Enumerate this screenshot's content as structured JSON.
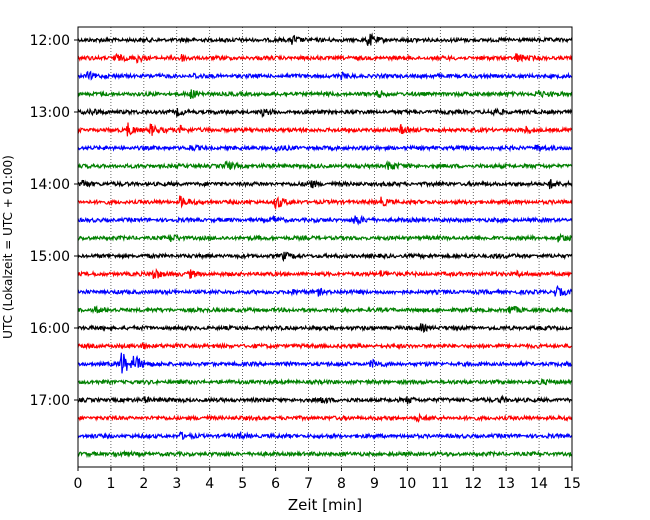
{
  "chart_data": {
    "type": "line",
    "title": "",
    "xlabel": "Zeit  [min]",
    "ylabel": "UTC (Lokalzeit = UTC + 01:00)",
    "x_ticks": [
      "0",
      "1",
      "2",
      "3",
      "4",
      "5",
      "6",
      "7",
      "8",
      "9",
      "10",
      "11",
      "12",
      "13",
      "14",
      "15"
    ],
    "xlim": [
      0,
      15
    ],
    "y_time_labels": [
      "12:00",
      "13:00",
      "14:00",
      "15:00",
      "16:00",
      "17:00"
    ],
    "trace_colors": [
      "#000000",
      "#ff0000",
      "#0000ff",
      "#008000"
    ],
    "grid": {
      "x": true,
      "style": "dotted",
      "y": false
    },
    "traces": [
      {
        "start": "12:00",
        "color": "#000000",
        "events": [
          [
            6.5,
            0.7
          ],
          [
            8.8,
            1.0
          ]
        ]
      },
      {
        "start": "12:15",
        "color": "#ff0000",
        "events": [
          [
            1.1,
            0.6
          ],
          [
            1.8,
            0.5
          ],
          [
            3.1,
            0.5
          ],
          [
            13.3,
            0.7
          ]
        ]
      },
      {
        "start": "12:30",
        "color": "#0000ff",
        "events": [
          [
            0.3,
            0.6
          ],
          [
            3.5,
            0.3
          ],
          [
            8.0,
            0.3
          ]
        ]
      },
      {
        "start": "12:45",
        "color": "#008000",
        "events": [
          [
            3.4,
            0.6
          ],
          [
            9.1,
            0.5
          ],
          [
            13.9,
            0.6
          ]
        ]
      },
      {
        "start": "13:00",
        "color": "#000000",
        "events": [
          [
            0.4,
            0.5
          ],
          [
            3.0,
            0.4
          ],
          [
            5.6,
            0.4
          ],
          [
            12.6,
            0.5
          ]
        ]
      },
      {
        "start": "13:15",
        "color": "#ff0000",
        "events": [
          [
            1.5,
            0.9
          ],
          [
            2.2,
            0.8
          ],
          [
            3.1,
            0.5
          ],
          [
            9.8,
            0.6
          ],
          [
            13.6,
            0.4
          ]
        ]
      },
      {
        "start": "13:30",
        "color": "#0000ff",
        "events": [
          [
            3.4,
            0.3
          ],
          [
            6.0,
            0.4
          ],
          [
            13.9,
            0.4
          ]
        ]
      },
      {
        "start": "13:45",
        "color": "#008000",
        "events": [
          [
            4.5,
            0.6
          ],
          [
            9.4,
            0.8
          ]
        ]
      },
      {
        "start": "14:00",
        "color": "#000000",
        "events": [
          [
            0.1,
            0.6
          ],
          [
            7.0,
            0.7
          ],
          [
            14.3,
            0.7
          ]
        ]
      },
      {
        "start": "14:15",
        "color": "#ff0000",
        "events": [
          [
            3.1,
            0.8
          ],
          [
            6.0,
            1.0
          ],
          [
            9.2,
            0.5
          ]
        ]
      },
      {
        "start": "14:30",
        "color": "#0000ff",
        "events": [
          [
            5.9,
            0.4
          ],
          [
            8.4,
            0.7
          ]
        ]
      },
      {
        "start": "14:45",
        "color": "#008000",
        "events": [
          [
            2.8,
            0.5
          ],
          [
            14.6,
            0.6
          ]
        ]
      },
      {
        "start": "15:00",
        "color": "#000000",
        "events": [
          [
            6.2,
            0.5
          ],
          [
            12.6,
            0.3
          ]
        ]
      },
      {
        "start": "15:15",
        "color": "#ff0000",
        "events": [
          [
            2.3,
            0.9
          ],
          [
            3.4,
            0.5
          ],
          [
            9.2,
            0.4
          ],
          [
            13.3,
            0.4
          ]
        ]
      },
      {
        "start": "15:30",
        "color": "#0000ff",
        "events": [
          [
            6.4,
            0.4
          ],
          [
            7.3,
            0.4
          ],
          [
            14.5,
            0.8
          ]
        ]
      },
      {
        "start": "15:45",
        "color": "#008000",
        "events": [
          [
            0.5,
            0.4
          ],
          [
            13.1,
            0.6
          ]
        ]
      },
      {
        "start": "16:00",
        "color": "#000000",
        "events": [
          [
            10.4,
            0.5
          ]
        ]
      },
      {
        "start": "16:15",
        "color": "#ff0000",
        "events": [
          [
            1.9,
            0.5
          ]
        ]
      },
      {
        "start": "16:30",
        "color": "#0000ff",
        "events": [
          [
            1.3,
            2.0
          ],
          [
            1.7,
            1.2
          ],
          [
            8.9,
            0.6
          ]
        ]
      },
      {
        "start": "16:45",
        "color": "#008000",
        "events": [
          [
            14.0,
            0.3
          ]
        ]
      },
      {
        "start": "17:00",
        "color": "#000000",
        "events": [
          [
            2.0,
            0.4
          ],
          [
            7.4,
            0.5
          ],
          [
            10.0,
            0.4
          ],
          [
            12.8,
            0.4
          ]
        ]
      },
      {
        "start": "17:15",
        "color": "#ff0000",
        "events": [
          [
            10.3,
            0.4
          ]
        ]
      },
      {
        "start": "17:30",
        "color": "#0000ff",
        "events": [
          [
            3.1,
            0.4
          ],
          [
            4.9,
            0.3
          ]
        ]
      },
      {
        "start": "17:45",
        "color": "#008000",
        "events": [
          [
            1.1,
            0.3
          ]
        ]
      }
    ]
  }
}
